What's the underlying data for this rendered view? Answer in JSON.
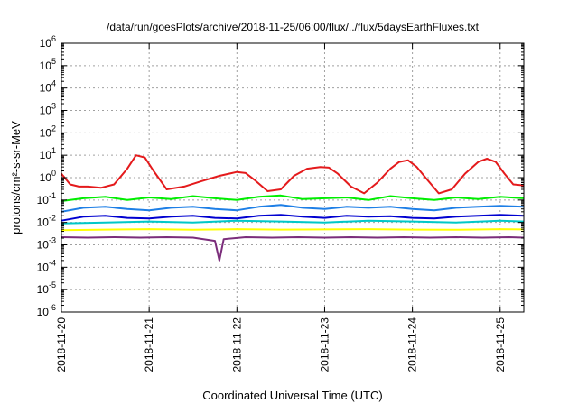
{
  "chart_data": {
    "type": "line",
    "title": "/data/run/goesPlots/archive/2018-11-25/06:00/flux/../flux/5daysEarthFluxes.txt",
    "xlabel": "Coordinated Universal Time (UTC)",
    "ylabel": "protons/cm²-s-sr-MeV",
    "yscale": "log",
    "ylim": [
      1e-06,
      1000000.0
    ],
    "xlim": [
      0,
      5.27
    ],
    "x_tick_labels": [
      "2018-11-20",
      "2018-11-21",
      "2018-11-22",
      "2018-11-23",
      "2018-11-24",
      "2018-11-25"
    ],
    "x_tick_values": [
      0,
      1,
      2,
      3,
      4,
      5
    ],
    "y_tick_exponents": [
      -6,
      -5,
      -4,
      -3,
      -2,
      -1,
      0,
      1,
      2,
      3,
      4,
      5,
      6
    ],
    "grid": true,
    "x_units": "days since 2018-11-20 00:00 UTC",
    "series": [
      {
        "color": "#e41a1c",
        "x": [
          0.0,
          0.1,
          0.2,
          0.3,
          0.45,
          0.6,
          0.75,
          0.85,
          0.95,
          1.05,
          1.2,
          1.4,
          1.6,
          1.8,
          2.0,
          2.1,
          2.2,
          2.35,
          2.5,
          2.65,
          2.8,
          2.95,
          3.05,
          3.15,
          3.3,
          3.45,
          3.6,
          3.75,
          3.85,
          3.95,
          4.05,
          4.15,
          4.3,
          4.45,
          4.6,
          4.75,
          4.85,
          4.95,
          5.05,
          5.15,
          5.27
        ],
        "values": [
          1.5,
          0.5,
          0.4,
          0.4,
          0.35,
          0.5,
          2.5,
          10,
          8,
          2,
          0.3,
          0.4,
          0.7,
          1.2,
          1.8,
          1.6,
          0.8,
          0.25,
          0.3,
          1.2,
          2.5,
          3,
          2.8,
          1.5,
          0.4,
          0.2,
          0.6,
          2.5,
          5,
          6,
          3,
          1,
          0.2,
          0.3,
          1.5,
          5,
          7,
          5,
          1.5,
          0.5,
          0.45
        ]
      },
      {
        "color": "#00ee00",
        "x": [
          0.0,
          0.25,
          0.5,
          0.75,
          1.0,
          1.25,
          1.5,
          1.75,
          2.0,
          2.25,
          2.5,
          2.75,
          3.0,
          3.25,
          3.5,
          3.75,
          4.0,
          4.25,
          4.5,
          4.75,
          5.0,
          5.27
        ],
        "values": [
          0.09,
          0.12,
          0.14,
          0.1,
          0.13,
          0.11,
          0.15,
          0.12,
          0.1,
          0.14,
          0.16,
          0.11,
          0.12,
          0.13,
          0.1,
          0.15,
          0.12,
          0.1,
          0.13,
          0.11,
          0.14,
          0.12
        ]
      },
      {
        "color": "#1e7fe6",
        "x": [
          0.0,
          0.25,
          0.5,
          0.75,
          1.0,
          1.25,
          1.5,
          1.75,
          2.0,
          2.25,
          2.5,
          2.75,
          3.0,
          3.25,
          3.5,
          3.75,
          4.0,
          4.25,
          4.5,
          4.75,
          5.0,
          5.27
        ],
        "values": [
          0.03,
          0.045,
          0.05,
          0.04,
          0.035,
          0.045,
          0.05,
          0.04,
          0.035,
          0.05,
          0.06,
          0.045,
          0.04,
          0.05,
          0.045,
          0.05,
          0.04,
          0.035,
          0.045,
          0.05,
          0.055,
          0.05
        ]
      },
      {
        "color": "#0000d0",
        "x": [
          0.0,
          0.25,
          0.5,
          0.75,
          1.0,
          1.25,
          1.5,
          1.75,
          2.0,
          2.25,
          2.5,
          2.75,
          3.0,
          3.25,
          3.5,
          3.75,
          4.0,
          4.25,
          4.5,
          4.75,
          5.0,
          5.27
        ],
        "values": [
          0.012,
          0.018,
          0.02,
          0.016,
          0.015,
          0.018,
          0.02,
          0.016,
          0.015,
          0.02,
          0.022,
          0.018,
          0.016,
          0.02,
          0.018,
          0.019,
          0.016,
          0.015,
          0.018,
          0.02,
          0.022,
          0.02
        ]
      },
      {
        "color": "#00c8c8",
        "x": [
          0.0,
          0.5,
          1.0,
          1.5,
          2.0,
          2.5,
          3.0,
          3.5,
          4.0,
          4.5,
          5.0,
          5.27
        ],
        "values": [
          0.009,
          0.01,
          0.011,
          0.01,
          0.012,
          0.011,
          0.01,
          0.012,
          0.011,
          0.01,
          0.012,
          0.011
        ]
      },
      {
        "color": "#ffff00",
        "x": [
          0.0,
          0.5,
          1.0,
          1.5,
          2.0,
          2.5,
          3.0,
          3.5,
          4.0,
          4.5,
          5.0,
          5.27
        ],
        "values": [
          0.0045,
          0.0048,
          0.005,
          0.0047,
          0.005,
          0.0048,
          0.0049,
          0.005,
          0.0048,
          0.0047,
          0.005,
          0.0049
        ]
      },
      {
        "color": "#7b2d7b",
        "x": [
          0.0,
          0.3,
          0.6,
          0.9,
          1.2,
          1.5,
          1.75,
          1.8,
          1.85,
          2.1,
          2.4,
          2.7,
          3.0,
          3.3,
          3.6,
          3.9,
          4.2,
          4.5,
          4.8,
          5.1,
          5.27
        ],
        "values": [
          0.0022,
          0.0021,
          0.0022,
          0.0021,
          0.0022,
          0.0021,
          0.0015,
          0.0002,
          0.0018,
          0.0022,
          0.0021,
          0.0022,
          0.0021,
          0.0022,
          0.0021,
          0.0022,
          0.0021,
          0.0022,
          0.0021,
          0.0022,
          0.0021
        ]
      }
    ]
  }
}
